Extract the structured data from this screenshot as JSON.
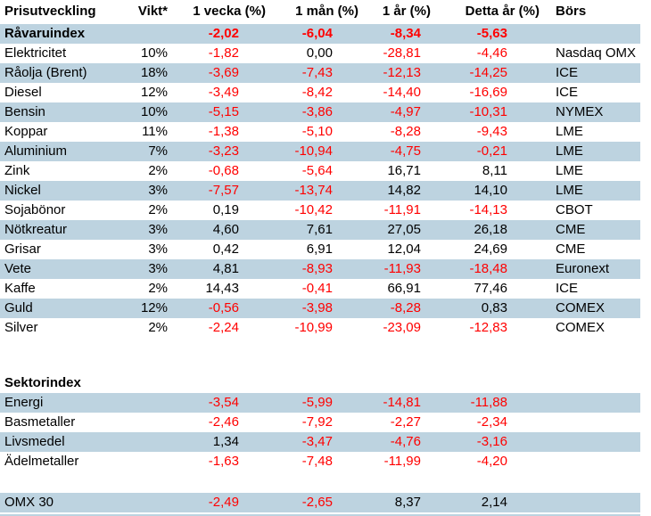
{
  "colors": {
    "row_shade": "#bdd3e0",
    "negative_value": "#ff0000",
    "text": "#000000",
    "background": "#ffffff"
  },
  "table": {
    "columns": [
      {
        "key": "label",
        "label": "Prisutveckling"
      },
      {
        "key": "vikt",
        "label": "Vikt*"
      },
      {
        "key": "w1",
        "label": "1 vecka (%)"
      },
      {
        "key": "m1",
        "label": "1 mån (%)"
      },
      {
        "key": "y1",
        "label": "1 år (%)"
      },
      {
        "key": "ytd",
        "label": "Detta år (%)"
      },
      {
        "key": "bors",
        "label": "Börs"
      }
    ],
    "rows": [
      {
        "kind": "data",
        "shaded": true,
        "bold": true,
        "label": "Råvaruindex",
        "vikt": "",
        "w1": "-2,02",
        "m1": "-6,04",
        "y1": "-8,34",
        "ytd": "-5,63",
        "bors": ""
      },
      {
        "kind": "data",
        "shaded": false,
        "bold": false,
        "label": "Elektricitet",
        "vikt": "10%",
        "w1": "-1,82",
        "m1": "0,00",
        "y1": "-28,81",
        "ytd": "-4,46",
        "bors": "Nasdaq OMX"
      },
      {
        "kind": "data",
        "shaded": true,
        "bold": false,
        "label": "Råolja (Brent)",
        "vikt": "18%",
        "w1": "-3,69",
        "m1": "-7,43",
        "y1": "-12,13",
        "ytd": "-14,25",
        "bors": "ICE"
      },
      {
        "kind": "data",
        "shaded": false,
        "bold": false,
        "label": "Diesel",
        "vikt": "12%",
        "w1": "-3,49",
        "m1": "-8,42",
        "y1": "-14,40",
        "ytd": "-16,69",
        "bors": "ICE"
      },
      {
        "kind": "data",
        "shaded": true,
        "bold": false,
        "label": "Bensin",
        "vikt": "10%",
        "w1": "-5,15",
        "m1": "-3,86",
        "y1": "-4,97",
        "ytd": "-10,31",
        "bors": "NYMEX"
      },
      {
        "kind": "data",
        "shaded": false,
        "bold": false,
        "label": "Koppar",
        "vikt": "11%",
        "w1": "-1,38",
        "m1": "-5,10",
        "y1": "-8,28",
        "ytd": "-9,43",
        "bors": "LME"
      },
      {
        "kind": "data",
        "shaded": true,
        "bold": false,
        "label": "Aluminium",
        "vikt": "7%",
        "w1": "-3,23",
        "m1": "-10,94",
        "y1": "-4,75",
        "ytd": "-0,21",
        "bors": "LME"
      },
      {
        "kind": "data",
        "shaded": false,
        "bold": false,
        "label": "Zink",
        "vikt": "2%",
        "w1": "-0,68",
        "m1": "-5,64",
        "y1": "16,71",
        "ytd": "8,11",
        "bors": "LME"
      },
      {
        "kind": "data",
        "shaded": true,
        "bold": false,
        "label": "Nickel",
        "vikt": "3%",
        "w1": "-7,57",
        "m1": "-13,74",
        "y1": "14,82",
        "ytd": "14,10",
        "bors": "LME"
      },
      {
        "kind": "data",
        "shaded": false,
        "bold": false,
        "label": "Sojabönor",
        "vikt": "2%",
        "w1": "0,19",
        "m1": "-10,42",
        "y1": "-11,91",
        "ytd": "-14,13",
        "bors": "CBOT"
      },
      {
        "kind": "data",
        "shaded": true,
        "bold": false,
        "label": "Nötkreatur",
        "vikt": "3%",
        "w1": "4,60",
        "m1": "7,61",
        "y1": "27,05",
        "ytd": "26,18",
        "bors": "CME"
      },
      {
        "kind": "data",
        "shaded": false,
        "bold": false,
        "label": "Grisar",
        "vikt": "3%",
        "w1": "0,42",
        "m1": "6,91",
        "y1": "12,04",
        "ytd": "24,69",
        "bors": "CME"
      },
      {
        "kind": "data",
        "shaded": true,
        "bold": false,
        "label": "Vete",
        "vikt": "3%",
        "w1": "4,81",
        "m1": "-8,93",
        "y1": "-11,93",
        "ytd": "-18,48",
        "bors": "Euronext"
      },
      {
        "kind": "data",
        "shaded": false,
        "bold": false,
        "label": "Kaffe",
        "vikt": "2%",
        "w1": "14,43",
        "m1": "-0,41",
        "y1": "66,91",
        "ytd": "77,46",
        "bors": "ICE"
      },
      {
        "kind": "data",
        "shaded": true,
        "bold": false,
        "label": "Guld",
        "vikt": "12%",
        "w1": "-0,56",
        "m1": "-3,98",
        "y1": "-8,28",
        "ytd": "0,83",
        "bors": "COMEX"
      },
      {
        "kind": "data",
        "shaded": false,
        "bold": false,
        "label": "Silver",
        "vikt": "2%",
        "w1": "-2,24",
        "m1": "-10,99",
        "y1": "-23,09",
        "ytd": "-12,83",
        "bors": "COMEX"
      },
      {
        "kind": "spacer",
        "height": 40
      },
      {
        "kind": "data",
        "shaded": false,
        "bold": true,
        "label": "Sektorindex",
        "vikt": "",
        "w1": "",
        "m1": "",
        "y1": "",
        "ytd": "",
        "bors": ""
      },
      {
        "kind": "data",
        "shaded": true,
        "bold": false,
        "label": "Energi",
        "vikt": "",
        "w1": "-3,54",
        "m1": "-5,99",
        "y1": "-14,81",
        "ytd": "-11,88",
        "bors": ""
      },
      {
        "kind": "data",
        "shaded": false,
        "bold": false,
        "label": "Basmetaller",
        "vikt": "",
        "w1": "-2,46",
        "m1": "-7,92",
        "y1": "-2,27",
        "ytd": "-2,34",
        "bors": ""
      },
      {
        "kind": "data",
        "shaded": true,
        "bold": false,
        "label": "Livsmedel",
        "vikt": "",
        "w1": "1,34",
        "m1": "-3,47",
        "y1": "-4,76",
        "ytd": "-3,16",
        "bors": ""
      },
      {
        "kind": "data",
        "shaded": false,
        "bold": false,
        "label": "Ädelmetaller",
        "vikt": "",
        "w1": "-1,63",
        "m1": "-7,48",
        "y1": "-11,99",
        "ytd": "-4,20",
        "bors": ""
      },
      {
        "kind": "spacer",
        "height": 24
      },
      {
        "kind": "data",
        "shaded": true,
        "bold": false,
        "label": "OMX 30",
        "vikt": "",
        "w1": "-2,49",
        "m1": "-2,65",
        "y1": "8,37",
        "ytd": "2,14",
        "bors": ""
      },
      {
        "kind": "spacer",
        "height": 2
      },
      {
        "kind": "partial",
        "shaded": true
      }
    ]
  }
}
